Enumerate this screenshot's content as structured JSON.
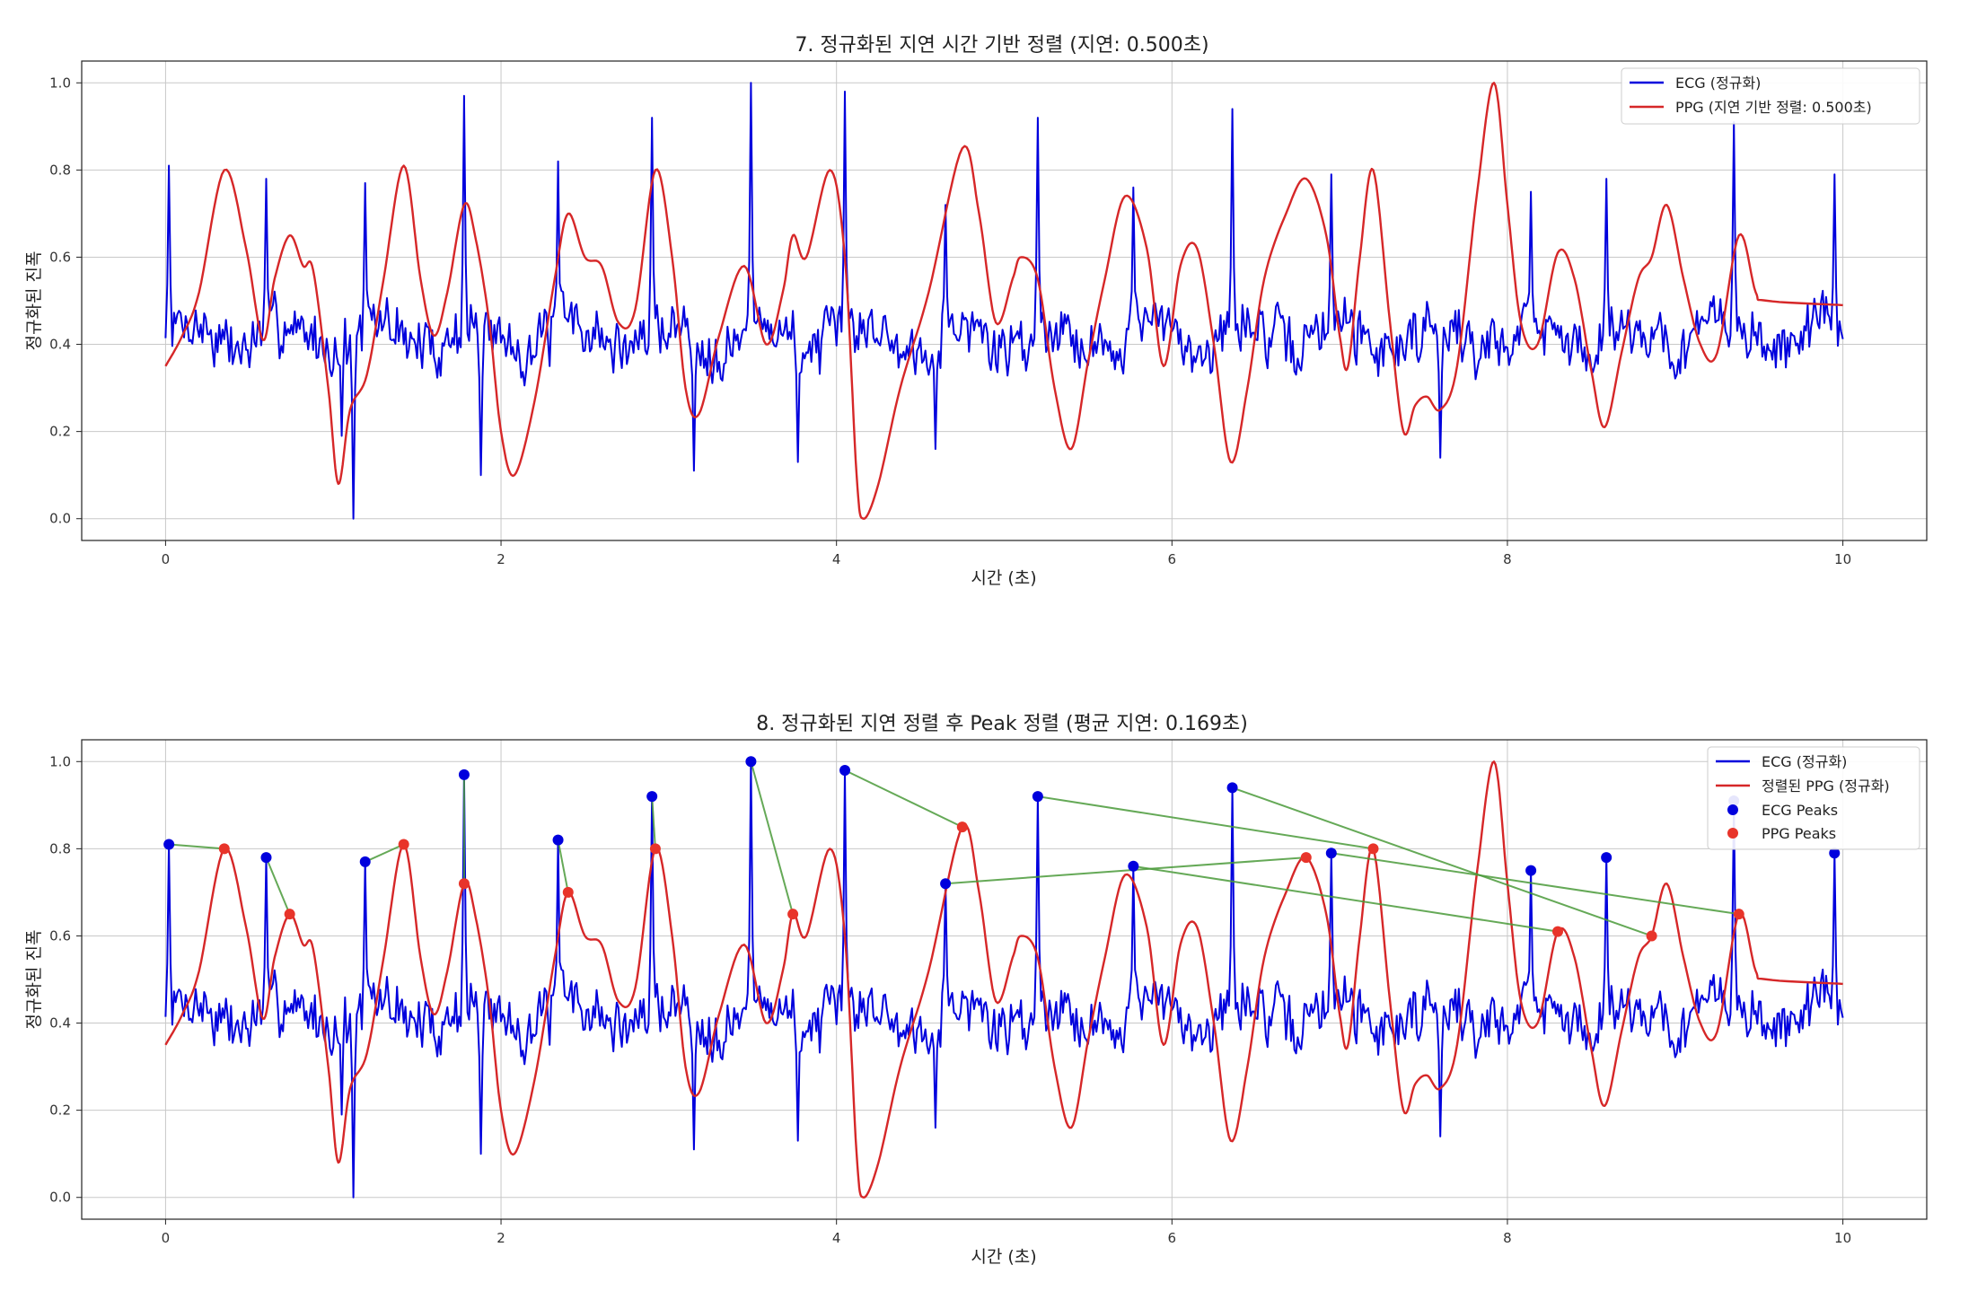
{
  "chart_data": [
    {
      "type": "line",
      "title": "7. 정규화된 지연 시간 기반 정렬 (지연: 0.500초)",
      "xlabel": "시간 (초)",
      "ylabel": "정규화된 진폭",
      "xlim": [
        -0.5,
        10.5
      ],
      "ylim": [
        -0.05,
        1.05
      ],
      "xticks": [
        0,
        2,
        4,
        6,
        8,
        10
      ],
      "yticks": [
        0.0,
        0.2,
        0.4,
        0.6,
        0.8,
        1.0
      ],
      "grid": true,
      "legend_position": "top-right",
      "series": [
        {
          "name": "ECG (정규화)",
          "color": "#0000dd",
          "kind": "noisy_line",
          "baseline": 0.42,
          "x_range": [
            0,
            10
          ],
          "spikes": [
            [
              0.02,
              0.81
            ],
            [
              0.6,
              0.78
            ],
            [
              1.19,
              0.77
            ],
            [
              1.78,
              0.97
            ],
            [
              2.34,
              0.82
            ],
            [
              2.9,
              0.92
            ],
            [
              3.49,
              1.0
            ],
            [
              4.05,
              0.98
            ],
            [
              4.65,
              0.72
            ],
            [
              5.2,
              0.92
            ],
            [
              5.77,
              0.76
            ],
            [
              6.36,
              0.94
            ],
            [
              6.95,
              0.79
            ],
            [
              8.14,
              0.75
            ],
            [
              8.59,
              0.78
            ],
            [
              9.35,
              0.91
            ],
            [
              9.95,
              0.79
            ]
          ],
          "dips": [
            [
              1.12,
              0.0
            ],
            [
              1.05,
              0.19
            ],
            [
              1.88,
              0.1
            ],
            [
              3.15,
              0.11
            ],
            [
              3.77,
              0.13
            ],
            [
              4.59,
              0.16
            ],
            [
              7.6,
              0.14
            ]
          ]
        },
        {
          "name": "PPG (지연 기반 정렬: 0.500초)",
          "color": "#d62728",
          "points": [
            [
              0,
              0.35
            ],
            [
              0.1,
              0.42
            ],
            [
              0.2,
              0.52
            ],
            [
              0.35,
              0.8
            ],
            [
              0.48,
              0.62
            ],
            [
              0.58,
              0.41
            ],
            [
              0.65,
              0.55
            ],
            [
              0.74,
              0.65
            ],
            [
              0.82,
              0.58
            ],
            [
              0.88,
              0.57
            ],
            [
              0.97,
              0.3
            ],
            [
              1.03,
              0.08
            ],
            [
              1.1,
              0.25
            ],
            [
              1.2,
              0.33
            ],
            [
              1.3,
              0.55
            ],
            [
              1.42,
              0.81
            ],
            [
              1.52,
              0.55
            ],
            [
              1.6,
              0.42
            ],
            [
              1.68,
              0.52
            ],
            [
              1.78,
              0.72
            ],
            [
              1.85,
              0.64
            ],
            [
              1.93,
              0.45
            ],
            [
              2.0,
              0.2
            ],
            [
              2.08,
              0.1
            ],
            [
              2.2,
              0.27
            ],
            [
              2.32,
              0.55
            ],
            [
              2.4,
              0.7
            ],
            [
              2.5,
              0.6
            ],
            [
              2.6,
              0.58
            ],
            [
              2.7,
              0.45
            ],
            [
              2.8,
              0.48
            ],
            [
              2.92,
              0.8
            ],
            [
              3.02,
              0.6
            ],
            [
              3.1,
              0.3
            ],
            [
              3.18,
              0.24
            ],
            [
              3.3,
              0.42
            ],
            [
              3.45,
              0.58
            ],
            [
              3.58,
              0.4
            ],
            [
              3.68,
              0.52
            ],
            [
              3.74,
              0.65
            ],
            [
              3.82,
              0.6
            ],
            [
              3.96,
              0.8
            ],
            [
              4.05,
              0.6
            ],
            [
              4.12,
              0.1
            ],
            [
              4.16,
              0.0
            ],
            [
              4.25,
              0.08
            ],
            [
              4.38,
              0.3
            ],
            [
              4.55,
              0.52
            ],
            [
              4.75,
              0.85
            ],
            [
              4.85,
              0.7
            ],
            [
              4.95,
              0.45
            ],
            [
              5.05,
              0.55
            ],
            [
              5.1,
              0.6
            ],
            [
              5.2,
              0.55
            ],
            [
              5.3,
              0.3
            ],
            [
              5.4,
              0.16
            ],
            [
              5.5,
              0.36
            ],
            [
              5.6,
              0.55
            ],
            [
              5.72,
              0.74
            ],
            [
              5.85,
              0.62
            ],
            [
              5.95,
              0.35
            ],
            [
              6.05,
              0.58
            ],
            [
              6.15,
              0.62
            ],
            [
              6.25,
              0.4
            ],
            [
              6.35,
              0.13
            ],
            [
              6.45,
              0.3
            ],
            [
              6.55,
              0.55
            ],
            [
              6.68,
              0.7
            ],
            [
              6.8,
              0.78
            ],
            [
              6.92,
              0.65
            ],
            [
              7.0,
              0.42
            ],
            [
              7.05,
              0.35
            ],
            [
              7.12,
              0.6
            ],
            [
              7.2,
              0.8
            ],
            [
              7.3,
              0.45
            ],
            [
              7.38,
              0.2
            ],
            [
              7.45,
              0.26
            ],
            [
              7.52,
              0.28
            ],
            [
              7.6,
              0.25
            ],
            [
              7.7,
              0.35
            ],
            [
              7.82,
              0.75
            ],
            [
              7.92,
              1.0
            ],
            [
              8.0,
              0.72
            ],
            [
              8.08,
              0.45
            ],
            [
              8.18,
              0.4
            ],
            [
              8.3,
              0.61
            ],
            [
              8.4,
              0.55
            ],
            [
              8.5,
              0.34
            ],
            [
              8.58,
              0.21
            ],
            [
              8.68,
              0.38
            ],
            [
              8.78,
              0.55
            ],
            [
              8.86,
              0.6
            ],
            [
              8.95,
              0.72
            ],
            [
              9.05,
              0.55
            ],
            [
              9.15,
              0.4
            ],
            [
              9.25,
              0.38
            ],
            [
              9.38,
              0.65
            ],
            [
              9.48,
              0.52
            ],
            [
              9.55,
              0.5
            ],
            [
              10.0,
              0.49
            ]
          ]
        }
      ]
    },
    {
      "type": "line",
      "title": "8. 정규화된 지연 정렬 후 Peak 정렬 (평균 지연: 0.169초)",
      "xlabel": "시간 (초)",
      "ylabel": "정규화된 진폭",
      "xlim": [
        -0.5,
        10.5
      ],
      "ylim": [
        -0.05,
        1.05
      ],
      "xticks": [
        0,
        2,
        4,
        6,
        8,
        10
      ],
      "yticks": [
        0.0,
        0.2,
        0.4,
        0.6,
        0.8,
        1.0
      ],
      "grid": true,
      "legend_position": "top-right",
      "series": [
        {
          "name": "ECG (정규화)",
          "color": "#0000dd",
          "kind": "line",
          "same_as": "chart 7 ECG"
        },
        {
          "name": "정렬된 PPG (정규화)",
          "color": "#d62728",
          "kind": "line",
          "same_as": "chart 7 PPG"
        },
        {
          "name": "ECG Peaks",
          "color": "#0000dd",
          "kind": "scatter",
          "points": [
            [
              0.02,
              0.81
            ],
            [
              0.6,
              0.78
            ],
            [
              1.19,
              0.77
            ],
            [
              1.78,
              0.97
            ],
            [
              2.34,
              0.82
            ],
            [
              2.9,
              0.92
            ],
            [
              3.49,
              1.0
            ],
            [
              4.05,
              0.98
            ],
            [
              4.65,
              0.72
            ],
            [
              5.2,
              0.92
            ],
            [
              5.77,
              0.76
            ],
            [
              6.36,
              0.94
            ],
            [
              6.95,
              0.79
            ],
            [
              8.14,
              0.75
            ],
            [
              8.59,
              0.78
            ],
            [
              9.35,
              0.91
            ],
            [
              9.95,
              0.79
            ]
          ]
        },
        {
          "name": "PPG Peaks",
          "color": "#e8342a",
          "kind": "scatter",
          "points": [
            [
              0.35,
              0.8
            ],
            [
              0.74,
              0.65
            ],
            [
              1.42,
              0.81
            ],
            [
              1.78,
              0.72
            ],
            [
              2.4,
              0.7
            ],
            [
              2.92,
              0.8
            ],
            [
              3.74,
              0.65
            ],
            [
              4.75,
              0.85
            ],
            [
              6.8,
              0.78
            ],
            [
              7.2,
              0.8
            ],
            [
              8.3,
              0.61
            ],
            [
              8.86,
              0.6
            ],
            [
              9.38,
              0.65
            ]
          ]
        }
      ],
      "connections": {
        "color": "#4a9a3a",
        "pairs": [
          [
            [
              0.02,
              0.81
            ],
            [
              0.35,
              0.8
            ]
          ],
          [
            [
              0.6,
              0.78
            ],
            [
              0.74,
              0.65
            ]
          ],
          [
            [
              1.19,
              0.77
            ],
            [
              1.42,
              0.81
            ]
          ],
          [
            [
              1.78,
              0.97
            ],
            [
              1.78,
              0.72
            ]
          ],
          [
            [
              2.34,
              0.82
            ],
            [
              2.4,
              0.7
            ]
          ],
          [
            [
              2.9,
              0.92
            ],
            [
              2.92,
              0.8
            ]
          ],
          [
            [
              3.49,
              1.0
            ],
            [
              3.74,
              0.65
            ]
          ],
          [
            [
              4.05,
              0.98
            ],
            [
              4.75,
              0.85
            ]
          ],
          [
            [
              4.65,
              0.72
            ],
            [
              6.8,
              0.78
            ]
          ],
          [
            [
              5.2,
              0.92
            ],
            [
              7.2,
              0.8
            ]
          ],
          [
            [
              5.77,
              0.76
            ],
            [
              8.3,
              0.61
            ]
          ],
          [
            [
              6.36,
              0.94
            ],
            [
              8.86,
              0.6
            ]
          ],
          [
            [
              6.95,
              0.79
            ],
            [
              9.38,
              0.65
            ]
          ]
        ]
      }
    }
  ]
}
